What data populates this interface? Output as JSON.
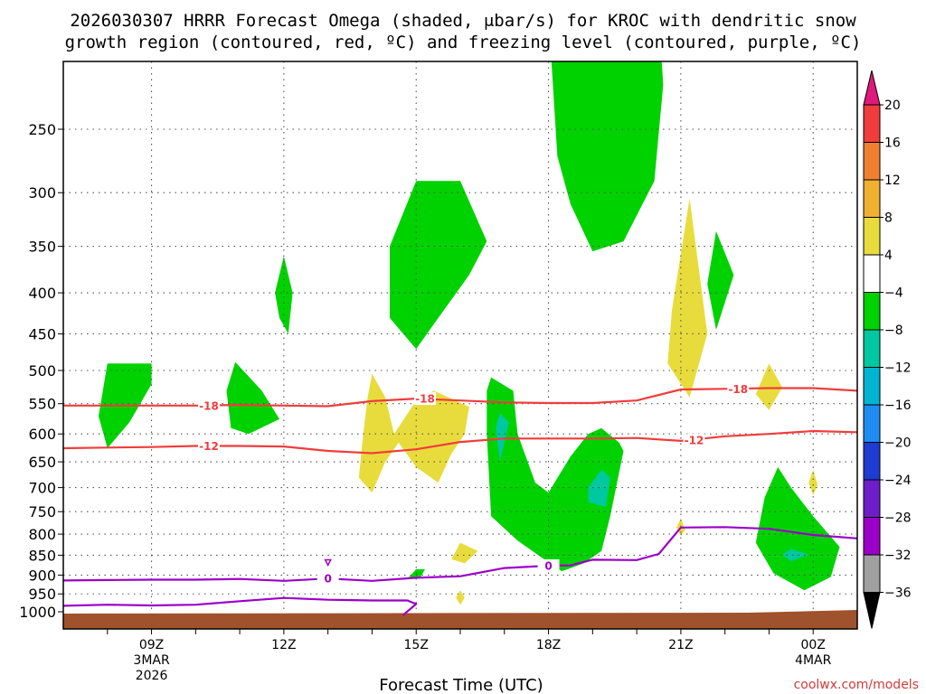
{
  "chart_data": {
    "type": "contour",
    "title_line1": "2026030307 HRRR Forecast Omega (shaded, μbar/s) for KROC with dendritic snow",
    "title_line2": "growth region (contoured, red, ºC) and freezing level (contoured, purple, ºC)",
    "xlabel": "Forecast Time (UTC)",
    "credit": "coolwx.com/models",
    "x_ticks": [
      {
        "hour": 9,
        "label": "09Z",
        "sub1": "3MAR",
        "sub2": "2026"
      },
      {
        "hour": 12,
        "label": "12Z",
        "sub1": "",
        "sub2": ""
      },
      {
        "hour": 15,
        "label": "15Z",
        "sub1": "",
        "sub2": ""
      },
      {
        "hour": 18,
        "label": "18Z",
        "sub1": "",
        "sub2": ""
      },
      {
        "hour": 21,
        "label": "21Z",
        "sub1": "",
        "sub2": ""
      },
      {
        "hour": 24,
        "label": "00Z",
        "sub1": "4MAR",
        "sub2": ""
      }
    ],
    "xlim": [
      7,
      25
    ],
    "y_ticks": [
      250,
      300,
      350,
      400,
      450,
      500,
      550,
      600,
      650,
      700,
      750,
      800,
      850,
      900,
      950,
      1000
    ],
    "y_scale": "log",
    "y_inverted": true,
    "grid": "dotted",
    "colorbar": {
      "labels": [
        "20",
        "16",
        "12",
        "8",
        "4",
        "−4",
        "−8",
        "−12",
        "−16",
        "−20",
        "−24",
        "−28",
        "−32",
        "−36"
      ],
      "colors": [
        "#e0197d",
        "#f03c3c",
        "#f08030",
        "#f0b030",
        "#e8dc3c",
        "#ffffff",
        "#00d200",
        "#00c8a0",
        "#00b4d2",
        "#1e8cf0",
        "#1e3cd2",
        "#6e1ec8",
        "#9b00c8",
        "#a0a0a0",
        "#000000"
      ]
    },
    "contour_labels": {
      "dgz_upper": "-18",
      "dgz_lower": "-12",
      "freezing": "0"
    },
    "contour_colors": {
      "dgz": "#f03c3c",
      "freezing": "#9b00c8",
      "ground": "#a0522d"
    },
    "lines": [
      {
        "name": "dgz_upper",
        "color": "#f03c3c",
        "points": [
          [
            7,
            553
          ],
          [
            8,
            553
          ],
          [
            9,
            553
          ],
          [
            10,
            553
          ],
          [
            11,
            552
          ],
          [
            12,
            553
          ],
          [
            13,
            554
          ],
          [
            14,
            546
          ],
          [
            15,
            542
          ],
          [
            16,
            545
          ],
          [
            17,
            548
          ],
          [
            18,
            549
          ],
          [
            19,
            549
          ],
          [
            20,
            545
          ],
          [
            21,
            528
          ],
          [
            22,
            527
          ],
          [
            23,
            526
          ],
          [
            24,
            526
          ],
          [
            25,
            530
          ]
        ]
      },
      {
        "name": "dgz_lower",
        "color": "#f03c3c",
        "points": [
          [
            7,
            625
          ],
          [
            8,
            624
          ],
          [
            9,
            623
          ],
          [
            10,
            621
          ],
          [
            11,
            621
          ],
          [
            12,
            622
          ],
          [
            13,
            630
          ],
          [
            14,
            634
          ],
          [
            15,
            627
          ],
          [
            16,
            614
          ],
          [
            17,
            608
          ],
          [
            18,
            608
          ],
          [
            19,
            608
          ],
          [
            20,
            607
          ],
          [
            21,
            612
          ],
          [
            22,
            604
          ],
          [
            23,
            600
          ],
          [
            24,
            595
          ],
          [
            25,
            597
          ]
        ]
      },
      {
        "name": "freezing_upper",
        "color": "#9b00c8",
        "points": [
          [
            7,
            914
          ],
          [
            8,
            913
          ],
          [
            9,
            912
          ],
          [
            10,
            912
          ],
          [
            11,
            910
          ],
          [
            12,
            915
          ],
          [
            13,
            909
          ],
          [
            14,
            915
          ],
          [
            15,
            907
          ],
          [
            16,
            903
          ],
          [
            17,
            882
          ],
          [
            18,
            876
          ],
          [
            18.5,
            875
          ],
          [
            19,
            861
          ],
          [
            20,
            862
          ],
          [
            20.5,
            847
          ],
          [
            21,
            785
          ],
          [
            22,
            784
          ],
          [
            23,
            788
          ],
          [
            24,
            802
          ],
          [
            25,
            810
          ]
        ]
      },
      {
        "name": "freezing_lower",
        "color": "#9b00c8",
        "points": [
          [
            7,
            983
          ],
          [
            8,
            980
          ],
          [
            9,
            982
          ],
          [
            10,
            980
          ],
          [
            11,
            970
          ],
          [
            12,
            961
          ],
          [
            13,
            966
          ],
          [
            14,
            968
          ],
          [
            14.8,
            968
          ],
          [
            15,
            978
          ],
          [
            14.7,
            1010
          ]
        ]
      }
    ],
    "shaded": [
      {
        "value": -4,
        "points": [
          [
            8,
            490
          ],
          [
            9,
            490
          ],
          [
            9,
            520
          ],
          [
            8.5,
            580
          ],
          [
            8,
            625
          ],
          [
            7.8,
            570
          ]
        ]
      },
      {
        "value": -4,
        "points": [
          [
            10.9,
            488
          ],
          [
            11.5,
            530
          ],
          [
            11.9,
            575
          ],
          [
            11.2,
            600
          ],
          [
            10.8,
            590
          ],
          [
            10.7,
            530
          ]
        ]
      },
      {
        "value": -4,
        "points": [
          [
            12,
            360
          ],
          [
            12.2,
            400
          ],
          [
            12.1,
            450
          ],
          [
            11.9,
            430
          ],
          [
            11.8,
            400
          ]
        ]
      },
      {
        "value": -4,
        "points": [
          [
            15,
            290
          ],
          [
            16,
            290
          ],
          [
            16.6,
            345
          ],
          [
            16.2,
            380
          ],
          [
            15.5,
            430
          ],
          [
            15,
            470
          ],
          [
            14.4,
            430
          ],
          [
            14.4,
            350
          ]
        ]
      },
      {
        "value": -4,
        "points": [
          [
            18,
            180
          ],
          [
            20.5,
            180
          ],
          [
            20.6,
            220
          ],
          [
            20.4,
            290
          ],
          [
            19.7,
            345
          ],
          [
            19,
            355
          ],
          [
            18.5,
            310
          ],
          [
            18.2,
            270
          ]
        ]
      },
      {
        "value": -4,
        "points": [
          [
            21.8,
            335
          ],
          [
            22.2,
            380
          ],
          [
            21.8,
            445
          ],
          [
            21.6,
            390
          ]
        ]
      },
      {
        "value": -4,
        "points": [
          [
            16.7,
            510
          ],
          [
            17.2,
            530
          ],
          [
            17.3,
            600
          ],
          [
            17.7,
            690
          ],
          [
            18,
            710
          ],
          [
            18.5,
            640
          ],
          [
            18.9,
            600
          ],
          [
            19.2,
            590
          ],
          [
            19.6,
            615
          ],
          [
            19.7,
            630
          ],
          [
            19.4,
            760
          ],
          [
            19.2,
            840
          ],
          [
            18.8,
            870
          ],
          [
            18.3,
            890
          ],
          [
            17.9,
            860
          ],
          [
            17.3,
            815
          ],
          [
            16.7,
            760
          ],
          [
            16.6,
            600
          ],
          [
            16.6,
            530
          ]
        ]
      },
      {
        "value": -4,
        "points": [
          [
            15,
            885
          ],
          [
            15.2,
            885
          ],
          [
            15.1,
            905
          ],
          [
            14.8,
            910
          ]
        ]
      },
      {
        "value": -4,
        "points": [
          [
            23.2,
            660
          ],
          [
            23.5,
            700
          ],
          [
            24,
            760
          ],
          [
            24.6,
            830
          ],
          [
            24.4,
            905
          ],
          [
            23.8,
            940
          ],
          [
            23.1,
            895
          ],
          [
            22.7,
            820
          ],
          [
            22.9,
            720
          ]
        ]
      },
      {
        "value": -8,
        "points": [
          [
            16.9,
            565
          ],
          [
            17.1,
            580
          ],
          [
            16.9,
            650
          ],
          [
            16.8,
            590
          ]
        ]
      },
      {
        "value": -8,
        "points": [
          [
            19.2,
            665
          ],
          [
            19.4,
            680
          ],
          [
            19.3,
            740
          ],
          [
            18.9,
            730
          ],
          [
            18.9,
            700
          ]
        ]
      },
      {
        "value": -8,
        "points": [
          [
            23.5,
            835
          ],
          [
            23.9,
            848
          ],
          [
            23.5,
            865
          ],
          [
            23.3,
            848
          ]
        ]
      },
      {
        "value": 4,
        "points": [
          [
            21.2,
            305
          ],
          [
            21.6,
            450
          ],
          [
            21.2,
            540
          ],
          [
            20.7,
            490
          ],
          [
            20.8,
            420
          ]
        ]
      },
      {
        "value": 4,
        "points": [
          [
            14,
            505
          ],
          [
            14.3,
            540
          ],
          [
            14.5,
            600
          ],
          [
            15,
            545
          ],
          [
            15.4,
            530
          ],
          [
            16.2,
            555
          ],
          [
            16.1,
            600
          ],
          [
            15.8,
            635
          ],
          [
            15.5,
            690
          ],
          [
            15,
            660
          ],
          [
            14.6,
            615
          ],
          [
            14.3,
            650
          ],
          [
            14,
            710
          ],
          [
            13.7,
            680
          ],
          [
            13.8,
            600
          ],
          [
            13.9,
            540
          ]
        ]
      },
      {
        "value": 4,
        "points": [
          [
            23,
            490
          ],
          [
            23.3,
            525
          ],
          [
            23,
            560
          ],
          [
            22.7,
            535
          ]
        ]
      },
      {
        "value": 4,
        "points": [
          [
            16,
            820
          ],
          [
            16.4,
            840
          ],
          [
            16.1,
            870
          ],
          [
            15.8,
            860
          ]
        ]
      },
      {
        "value": 4,
        "points": [
          [
            16,
            940
          ],
          [
            16.1,
            960
          ],
          [
            16,
            980
          ],
          [
            15.9,
            960
          ]
        ]
      },
      {
        "value": 4,
        "points": [
          [
            21,
            765
          ],
          [
            21.1,
            790
          ],
          [
            21,
            805
          ],
          [
            20.9,
            785
          ]
        ]
      },
      {
        "value": 4,
        "points": [
          [
            24,
            665
          ],
          [
            24.1,
            695
          ],
          [
            24,
            715
          ],
          [
            23.9,
            690
          ]
        ]
      }
    ]
  }
}
